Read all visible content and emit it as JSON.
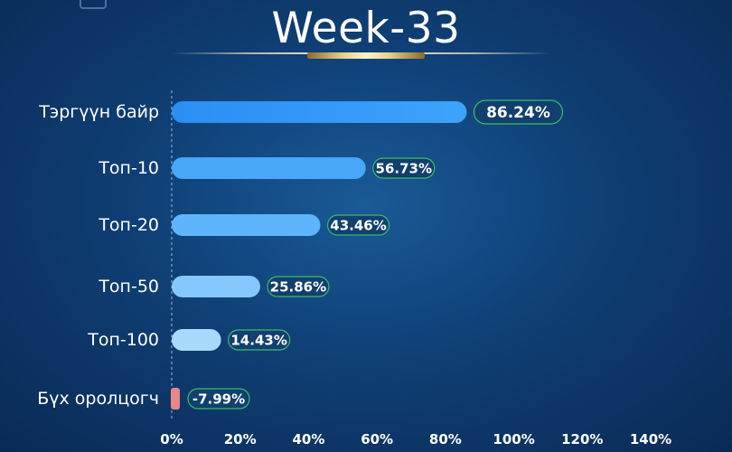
{
  "title": "Week-33",
  "chart_data": {
    "type": "bar",
    "orientation": "horizontal",
    "categories": [
      "Тэргүүн байр",
      "Топ-10",
      "Топ-20",
      "Топ-50",
      "Топ-100",
      "Бүх оролцогч"
    ],
    "values": [
      86.24,
      56.73,
      43.46,
      25.86,
      14.43,
      -7.99
    ],
    "value_labels": [
      "86.24%",
      "56.73%",
      "43.46%",
      "25.86%",
      "14.43%",
      "-7.99%"
    ],
    "xlim": [
      0,
      140
    ],
    "x_ticks": [
      "0%",
      "20%",
      "40%",
      "60%",
      "80%",
      "100%",
      "120%",
      "140%"
    ],
    "bar_colors": [
      "#3a9cf6",
      "#48a7f8",
      "#5fb5fb",
      "#84c8fd",
      "#aad9fe",
      "#e98787"
    ],
    "grid": false
  }
}
